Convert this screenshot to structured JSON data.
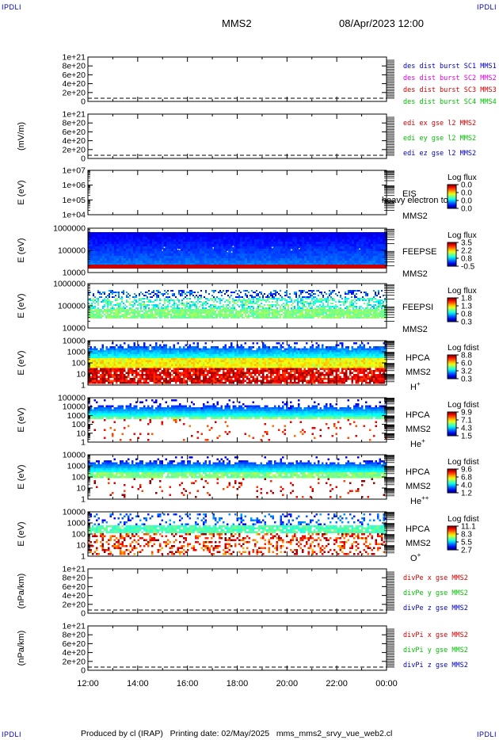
{
  "corner_labels": {
    "top_left": "IPDLI",
    "top_right": "IPDLI",
    "bottom_left": "IPDLI",
    "bottom_right": "IPDLI"
  },
  "header": {
    "title": "MMS2",
    "datetime": "08/Apr/2023 12:00"
  },
  "footer": {
    "text": "Produced by cl (IRAP)   Printing date: 02/May/2025   mms_mms2_srvy_vue_web2.cl"
  },
  "colors": {
    "red": "#d00000",
    "magenta": "#e000e0",
    "green": "#00c000",
    "blue": "#0000c0"
  },
  "chart_data": [
    {
      "id": "p1",
      "type": "line",
      "ylabel": "",
      "yticks": [
        "1e+21",
        "8e+20",
        "6e+20",
        "4e+20",
        "2e+20",
        "0"
      ],
      "legend": [
        {
          "text": "des dist burst SC1 MMS1",
          "color": "#0000c0"
        },
        {
          "text": "des dist burst SC2 MMS2",
          "color": "#e000e0"
        },
        {
          "text": "des dist burst SC3 MMS3",
          "color": "#d00000"
        },
        {
          "text": "des dist burst SC4 MMS4",
          "color": "#00c000"
        }
      ]
    },
    {
      "id": "p2",
      "type": "line",
      "ylabel": "(mV/m)",
      "yticks": [
        "1e+21",
        "8e+20",
        "6e+20",
        "4e+20",
        "2e+20",
        "0"
      ],
      "legend": [
        {
          "text": "edi ex gse l2 MMS2",
          "color": "#d00000"
        },
        {
          "text": "edi ey gse l2 MMS2",
          "color": "#00c000"
        },
        {
          "text": "edi ez gse l2 MMS2",
          "color": "#0000c0"
        }
      ]
    },
    {
      "id": "p3",
      "type": "heatmap",
      "ylabel": "E (eV)",
      "yticks": [
        "1e+07",
        "1e+06",
        "1e+05",
        "1e+04"
      ],
      "instrument": "EIS",
      "sc": "MMS2",
      "overlay": "heavy electron to",
      "cb_title": "Log flux",
      "cb_ticks": [
        "0.0",
        "0.0",
        "0.0",
        "0.0"
      ],
      "fill": "none"
    },
    {
      "id": "p4",
      "type": "heatmap",
      "ylabel": "E (eV)",
      "yticks": [
        "1000000",
        "100000",
        "10000"
      ],
      "instrument": "FEEPSE",
      "sc": "MMS2",
      "cb_title": "Log flux",
      "cb_ticks": [
        "3.5",
        "2.2",
        "0.8",
        "-0.5"
      ],
      "fill": "feepse"
    },
    {
      "id": "p5",
      "type": "heatmap",
      "ylabel": "E (eV)",
      "yticks": [
        "1000000",
        "100000",
        "10000"
      ],
      "instrument": "FEEPSI",
      "sc": "MMS2",
      "cb_title": "Log flux",
      "cb_ticks": [
        "1.8",
        "1.3",
        "0.8",
        "0.3"
      ],
      "fill": "feepsi"
    },
    {
      "id": "p6",
      "type": "heatmap",
      "ylabel": "E (eV)",
      "yticks": [
        "10000",
        "1000",
        "100",
        "10",
        "1"
      ],
      "instrument": "HPCA",
      "sc": "MMS2",
      "species": "H",
      "sup": "+",
      "cb_title": "Log fdist",
      "cb_ticks": [
        "8.8",
        "6.0",
        "3.2",
        "0.3"
      ],
      "fill": "hplus"
    },
    {
      "id": "p7",
      "type": "heatmap",
      "ylabel": "E (eV)",
      "yticks": [
        "100000",
        "10000",
        "1000",
        "100",
        "10",
        "1"
      ],
      "instrument": "HPCA",
      "sc": "MMS2",
      "species": "He",
      "sup": "+",
      "cb_title": "Log fdist",
      "cb_ticks": [
        "9.9",
        "7.1",
        "4.3",
        "1.5"
      ],
      "fill": "heplus"
    },
    {
      "id": "p8",
      "type": "heatmap",
      "ylabel": "E (eV)",
      "yticks": [
        "10000",
        "1000",
        "100",
        "10",
        "1"
      ],
      "instrument": "HPCA",
      "sc": "MMS2",
      "species": "He",
      "sup": "++",
      "cb_title": "Log fdist",
      "cb_ticks": [
        "9.6",
        "6.8",
        "4.0",
        "1.2"
      ],
      "fill": "hepp"
    },
    {
      "id": "p9",
      "type": "heatmap",
      "ylabel": "E (eV)",
      "yticks": [
        "10000",
        "1000",
        "100",
        "10",
        "1"
      ],
      "instrument": "HPCA",
      "sc": "MMS2",
      "species": "O",
      "sup": "+",
      "cb_title": "Log fdist",
      "cb_ticks": [
        "11.1",
        "8.3",
        "5.5",
        "2.7"
      ],
      "fill": "oplus"
    },
    {
      "id": "p10",
      "type": "line",
      "ylabel": "(nPa/km)",
      "yticks": [
        "1e+21",
        "8e+20",
        "6e+20",
        "4e+20",
        "2e+20",
        "0"
      ],
      "legend": [
        {
          "text": "divPe x gse MMS2",
          "color": "#d00000"
        },
        {
          "text": "divPe y gse MMS2",
          "color": "#00c000"
        },
        {
          "text": "divPe z gse MMS2",
          "color": "#0000c0"
        }
      ]
    },
    {
      "id": "p11",
      "type": "line",
      "ylabel": "(nPa/km)",
      "yticks": [
        "1e+21",
        "8e+20",
        "6e+20",
        "4e+20",
        "2e+20",
        "0"
      ],
      "legend": [
        {
          "text": "divPi x gse MMS2",
          "color": "#d00000"
        },
        {
          "text": "divPi y gse MMS2",
          "color": "#00c000"
        },
        {
          "text": "divPi z gse MMS2",
          "color": "#0000c0"
        }
      ]
    }
  ],
  "time_axis": {
    "ticks": [
      "12:00",
      "14:00",
      "16:00",
      "18:00",
      "20:00",
      "22:00",
      "00:00"
    ]
  }
}
